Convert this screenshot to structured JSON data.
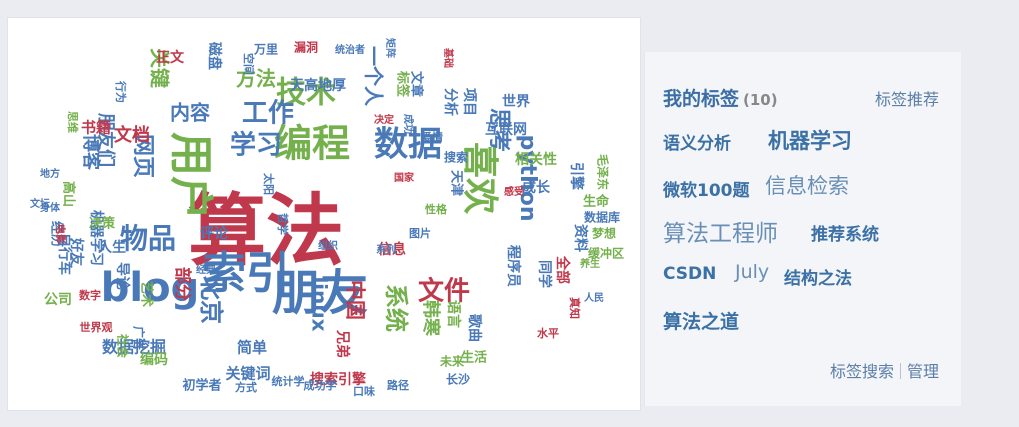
{
  "tag_panel": {
    "title": "我的标签",
    "count": "(10)",
    "recommend": "标签推荐",
    "tags": [
      "语义分析",
      "机器学习",
      "微软100题",
      "信息检索",
      "算法工程师",
      "推荐系统",
      "CSDN",
      "July",
      "结构之法",
      "算法之道"
    ],
    "search": "标签搜索",
    "manage": "管理"
  },
  "word_cloud": {
    "colors": {
      "red": "#c0384b",
      "green": "#74b04c",
      "blue": "#4a79b8",
      "dark_red": "#9a2a3a"
    },
    "words": [
      {
        "text": "算法",
        "color": "red"
      },
      {
        "text": "朋友",
        "color": "blue"
      },
      {
        "text": "用户",
        "color": "green"
      },
      {
        "text": "编程",
        "color": "green"
      },
      {
        "text": "blog",
        "color": "blue"
      },
      {
        "text": "数据",
        "color": "blue"
      },
      {
        "text": "索引",
        "color": "blue"
      },
      {
        "text": "喜欢",
        "color": "green"
      },
      {
        "text": "技术",
        "color": "green"
      },
      {
        "text": "工作",
        "color": "blue"
      },
      {
        "text": "学习",
        "color": "blue"
      },
      {
        "text": "物品",
        "color": "blue"
      },
      {
        "text": "网页",
        "color": "blue"
      },
      {
        "text": "北京",
        "color": "blue"
      },
      {
        "text": "文件",
        "color": "red"
      },
      {
        "text": "python",
        "color": "blue"
      },
      {
        "text": "linux",
        "color": "blue"
      },
      {
        "text": "系统",
        "color": "green"
      },
      {
        "text": "中国",
        "color": "red"
      },
      {
        "text": "思考",
        "color": "blue"
      },
      {
        "text": "内容",
        "color": "blue"
      },
      {
        "text": "方法",
        "color": "green"
      },
      {
        "text": "关键",
        "color": "green"
      },
      {
        "text": "一个人",
        "color": "blue"
      },
      {
        "text": "文档",
        "color": "red"
      },
      {
        "text": "博客",
        "color": "blue"
      },
      {
        "text": "朋友们",
        "color": "blue"
      },
      {
        "text": "部分",
        "color": "red"
      },
      {
        "text": "数据挖掘",
        "color": "blue"
      },
      {
        "text": "项目",
        "color": "blue"
      },
      {
        "text": "互联网",
        "color": "blue"
      },
      {
        "text": "书籍",
        "color": "red"
      },
      {
        "text": "简单",
        "color": "blue"
      },
      {
        "text": "关键词",
        "color": "blue"
      },
      {
        "text": "韩寒",
        "color": "green"
      },
      {
        "text": "引擎",
        "color": "blue"
      },
      {
        "text": "同学",
        "color": "blue"
      },
      {
        "text": "相关性",
        "color": "green"
      },
      {
        "text": "世界",
        "color": "blue"
      },
      {
        "text": "分析",
        "color": "blue"
      },
      {
        "text": "天高地厚",
        "color": "blue"
      },
      {
        "text": "正文",
        "color": "red"
      },
      {
        "text": "磁盘",
        "color": "blue"
      },
      {
        "text": "全部",
        "color": "red"
      },
      {
        "text": "程序员",
        "color": "blue"
      },
      {
        "text": "成长",
        "color": "blue"
      },
      {
        "text": "公司",
        "color": "green"
      },
      {
        "text": "好友",
        "color": "blue"
      },
      {
        "text": "机器学习",
        "color": "blue"
      },
      {
        "text": "自行车",
        "color": "blue"
      },
      {
        "text": "评论",
        "color": "blue"
      },
      {
        "text": "信息",
        "color": "red"
      },
      {
        "text": "搜索引擎",
        "color": "red"
      },
      {
        "text": "语言",
        "color": "green"
      },
      {
        "text": "歌曲",
        "color": "blue"
      },
      {
        "text": "生活",
        "color": "green"
      },
      {
        "text": "长沙",
        "color": "blue"
      },
      {
        "text": "兄弟",
        "color": "red"
      },
      {
        "text": "编码",
        "color": "green"
      },
      {
        "text": "初学者",
        "color": "blue"
      },
      {
        "text": "艺术",
        "color": "green"
      },
      {
        "text": "导论",
        "color": "blue"
      },
      {
        "text": "资料",
        "color": "blue"
      },
      {
        "text": "天津",
        "color": "blue"
      },
      {
        "text": "生命",
        "color": "green"
      },
      {
        "text": "缓冲区",
        "color": "green"
      },
      {
        "text": "梦想",
        "color": "green"
      },
      {
        "text": "数据库",
        "color": "blue"
      },
      {
        "text": "搜索",
        "color": "blue"
      },
      {
        "text": "图片",
        "color": "blue"
      },
      {
        "text": "标签",
        "color": "green"
      },
      {
        "text": "文章",
        "color": "blue"
      },
      {
        "text": "漏洞",
        "color": "red"
      },
      {
        "text": "万里",
        "color": "blue"
      },
      {
        "text": "空间",
        "color": "blue"
      },
      {
        "text": "人生",
        "color": "blue"
      },
      {
        "text": "高山",
        "color": "green"
      },
      {
        "text": "经历",
        "color": "blue"
      },
      {
        "text": "决策",
        "color": "green"
      },
      {
        "text": "广告",
        "color": "blue"
      },
      {
        "text": "社会",
        "color": "green"
      },
      {
        "text": "未来",
        "color": "green"
      },
      {
        "text": "统计学",
        "color": "blue"
      },
      {
        "text": "成功学",
        "color": "blue"
      },
      {
        "text": "方式",
        "color": "blue"
      },
      {
        "text": "口味",
        "color": "blue"
      },
      {
        "text": "路径",
        "color": "blue"
      },
      {
        "text": "水平",
        "color": "red"
      },
      {
        "text": "人民",
        "color": "blue"
      },
      {
        "text": "数字",
        "color": "red"
      },
      {
        "text": "世界观",
        "color": "red"
      },
      {
        "text": "太阳",
        "color": "blue"
      },
      {
        "text": "哲学",
        "color": "blue"
      },
      {
        "text": "毛泽东",
        "color": "green"
      },
      {
        "text": "性格",
        "color": "green"
      },
      {
        "text": "国家",
        "color": "red"
      },
      {
        "text": "系列",
        "color": "blue"
      },
      {
        "text": "经典",
        "color": "blue"
      },
      {
        "text": "组织",
        "color": "blue"
      },
      {
        "text": "地方",
        "color": "blue"
      },
      {
        "text": "文坛",
        "color": "blue"
      },
      {
        "text": "身体",
        "color": "blue"
      },
      {
        "text": "电影",
        "color": "red"
      },
      {
        "text": "思维",
        "color": "green"
      },
      {
        "text": "行为",
        "color": "blue"
      },
      {
        "text": "统治者",
        "color": "blue"
      },
      {
        "text": "矩阵",
        "color": "blue"
      },
      {
        "text": "基础",
        "color": "red"
      },
      {
        "text": "感受",
        "color": "red"
      },
      {
        "text": "养生",
        "color": "green"
      },
      {
        "text": "真知",
        "color": "red"
      },
      {
        "text": "爱情",
        "color": "blue"
      },
      {
        "text": "决定",
        "color": "red"
      },
      {
        "text": "成功",
        "color": "blue"
      }
    ]
  }
}
